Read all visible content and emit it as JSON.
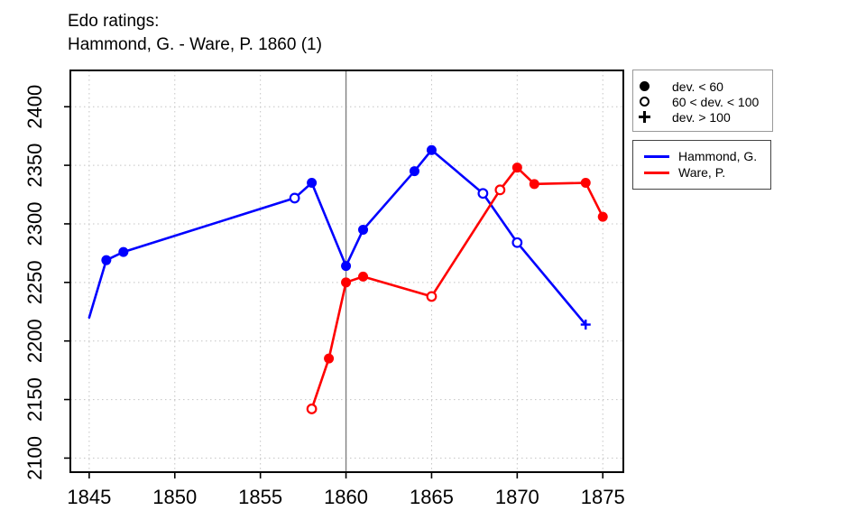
{
  "title": {
    "line1": "Edo ratings:",
    "line2": "Hammond, G. - Ware, P. 1860 (1)"
  },
  "chart_data": {
    "type": "line",
    "title": "Edo ratings: Hammond, G. - Ware, P. 1860 (1)",
    "xlabel": "",
    "ylabel": "",
    "xlim": [
      1843.9,
      1876.2
    ],
    "ylim": [
      2088,
      2431
    ],
    "x_ticks": [
      1845,
      1850,
      1855,
      1860,
      1865,
      1870,
      1875
    ],
    "y_ticks": [
      2100,
      2150,
      2200,
      2250,
      2300,
      2350,
      2400
    ],
    "grid": "dotted",
    "grid_color": "#c4c4c4",
    "vline": {
      "x": 1860,
      "color": "#808080"
    },
    "series": [
      {
        "name": "Hammond, G.",
        "color": "#0000ff",
        "points": [
          {
            "year": 1845,
            "rating": 2220,
            "marker": "none"
          },
          {
            "year": 1846,
            "rating": 2269,
            "marker": "filled"
          },
          {
            "year": 1847,
            "rating": 2276,
            "marker": "filled"
          },
          {
            "year": 1857,
            "rating": 2322,
            "marker": "open"
          },
          {
            "year": 1858,
            "rating": 2335,
            "marker": "filled"
          },
          {
            "year": 1860,
            "rating": 2264,
            "marker": "filled"
          },
          {
            "year": 1861,
            "rating": 2295,
            "marker": "filled"
          },
          {
            "year": 1864,
            "rating": 2345,
            "marker": "filled"
          },
          {
            "year": 1865,
            "rating": 2363,
            "marker": "filled"
          },
          {
            "year": 1868,
            "rating": 2326,
            "marker": "open"
          },
          {
            "year": 1870,
            "rating": 2284,
            "marker": "open"
          },
          {
            "year": 1874,
            "rating": 2214,
            "marker": "plus"
          }
        ]
      },
      {
        "name": "Ware, P.",
        "color": "#ff0000",
        "points": [
          {
            "year": 1858,
            "rating": 2142,
            "marker": "open"
          },
          {
            "year": 1859,
            "rating": 2185,
            "marker": "filled"
          },
          {
            "year": 1860,
            "rating": 2250,
            "marker": "filled"
          },
          {
            "year": 1861,
            "rating": 2255,
            "marker": "filled"
          },
          {
            "year": 1865,
            "rating": 2238,
            "marker": "open"
          },
          {
            "year": 1869,
            "rating": 2329,
            "marker": "open"
          },
          {
            "year": 1870,
            "rating": 2348,
            "marker": "filled"
          },
          {
            "year": 1871,
            "rating": 2334,
            "marker": "filled"
          },
          {
            "year": 1874,
            "rating": 2335,
            "marker": "filled"
          },
          {
            "year": 1875,
            "rating": 2306,
            "marker": "filled"
          }
        ]
      }
    ]
  },
  "legend_markers": {
    "items": [
      {
        "symbol": "filled-circle",
        "label": "dev. < 60"
      },
      {
        "symbol": "open-circle",
        "label": "60 < dev. < 100"
      },
      {
        "symbol": "plus",
        "label": "dev. > 100"
      }
    ]
  },
  "legend_series": {
    "items": [
      {
        "name": "Hammond, G.",
        "color": "#0000ff"
      },
      {
        "name": "Ware, P.",
        "color": "#ff0000"
      }
    ]
  }
}
